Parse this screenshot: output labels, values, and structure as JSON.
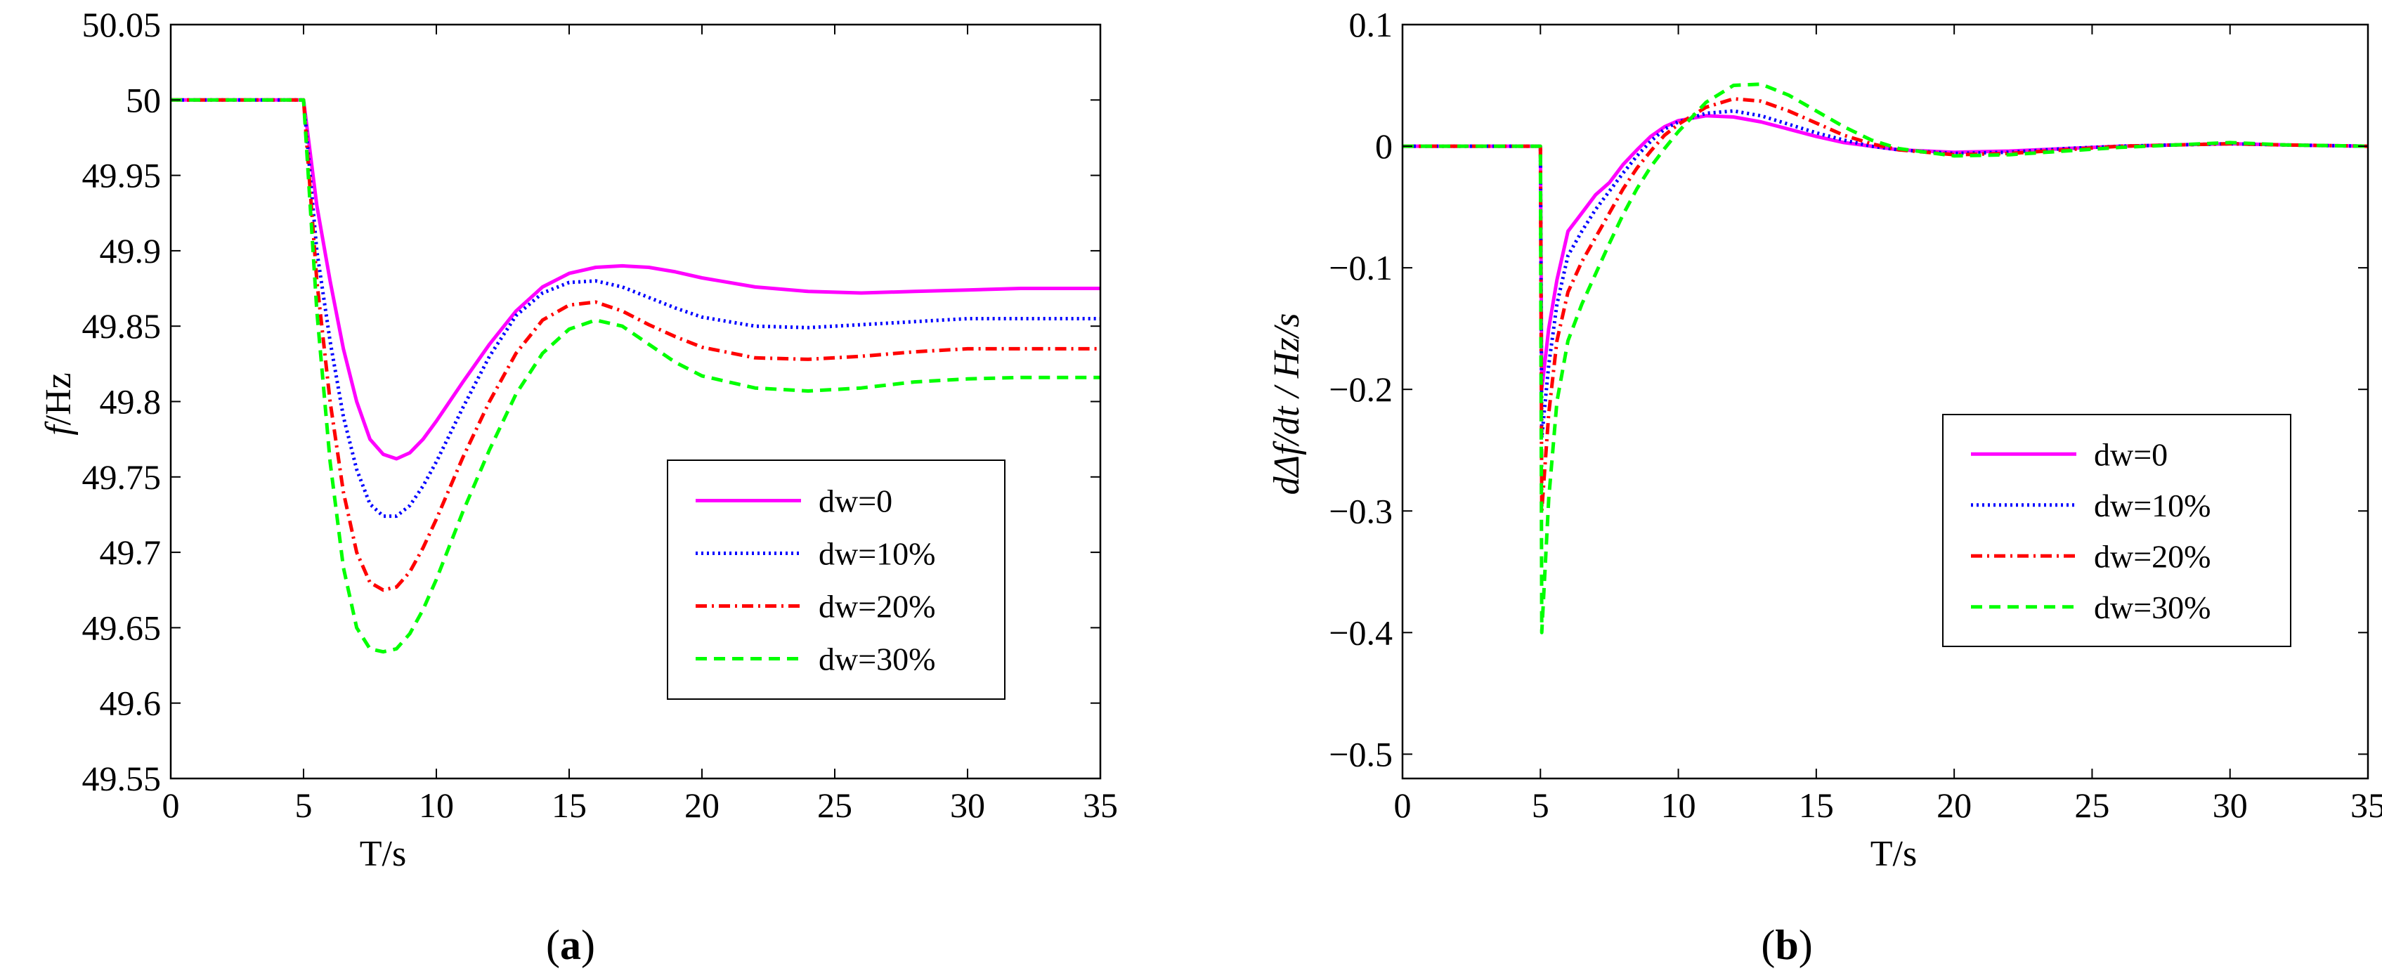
{
  "chart_data": [
    {
      "type": "line",
      "panel": "a",
      "caption": "(a)",
      "caption_letter": "a",
      "xlabel": "T/s",
      "ylabel": "f/Hz",
      "ylabel_italic": "f",
      "ylabel_rest": "/Hz",
      "xlim": [
        0,
        35
      ],
      "ylim": [
        49.55,
        50.05
      ],
      "xticks": [
        "0",
        "5",
        "10",
        "15",
        "20",
        "25",
        "30",
        "35"
      ],
      "yticks": [
        "49.55",
        "49.6",
        "49.65",
        "49.7",
        "49.75",
        "49.8",
        "49.85",
        "49.9",
        "49.95",
        "50",
        "50.05"
      ],
      "legend_position": "lower-right",
      "series": [
        {
          "name": "dw=0",
          "color": "#ff00ff",
          "style": "solid",
          "x": [
            0,
            4.9,
            5,
            5.5,
            6,
            6.5,
            7,
            7.5,
            8,
            8.5,
            9,
            9.5,
            10,
            11,
            12,
            13,
            14,
            15,
            16,
            17,
            18,
            19,
            20,
            22,
            24,
            26,
            28,
            30,
            32,
            35
          ],
          "y": [
            50,
            50,
            50,
            49.93,
            49.88,
            49.835,
            49.8,
            49.775,
            49.765,
            49.762,
            49.766,
            49.775,
            49.787,
            49.813,
            49.838,
            49.86,
            49.876,
            49.885,
            49.889,
            49.89,
            49.889,
            49.886,
            49.882,
            49.876,
            49.873,
            49.872,
            49.873,
            49.874,
            49.875,
            49.875
          ]
        },
        {
          "name": "dw=10%",
          "color": "#0000ff",
          "style": "dotted",
          "x": [
            0,
            4.9,
            5,
            5.5,
            6,
            6.5,
            7,
            7.5,
            8,
            8.5,
            9,
            9.5,
            10,
            11,
            12,
            13,
            14,
            15,
            16,
            17,
            18,
            19,
            20,
            22,
            24,
            26,
            28,
            30,
            32,
            35
          ],
          "y": [
            50,
            50,
            50,
            49.9,
            49.84,
            49.79,
            49.755,
            49.732,
            49.724,
            49.724,
            49.731,
            49.744,
            49.76,
            49.796,
            49.83,
            49.857,
            49.872,
            49.879,
            49.88,
            49.876,
            49.869,
            49.862,
            49.856,
            49.85,
            49.849,
            49.851,
            49.853,
            49.855,
            49.855,
            49.855
          ]
        },
        {
          "name": "dw=20%",
          "color": "#ff0000",
          "style": "dashdot",
          "x": [
            0,
            4.9,
            5,
            5.5,
            6,
            6.5,
            7,
            7.5,
            8,
            8.5,
            9,
            9.5,
            10,
            11,
            12,
            13,
            14,
            15,
            16,
            17,
            18,
            19,
            20,
            22,
            24,
            26,
            28,
            30,
            32,
            35
          ],
          "y": [
            50,
            50,
            50,
            49.88,
            49.8,
            49.74,
            49.7,
            49.68,
            49.675,
            49.677,
            49.687,
            49.703,
            49.722,
            49.763,
            49.8,
            49.832,
            49.854,
            49.864,
            49.866,
            49.86,
            49.851,
            49.843,
            49.836,
            49.829,
            49.828,
            49.83,
            49.833,
            49.835,
            49.835,
            49.835
          ]
        },
        {
          "name": "dw=30%",
          "color": "#00ff00",
          "style": "dashed",
          "x": [
            0,
            4.9,
            5,
            5.5,
            6,
            6.5,
            7,
            7.5,
            8,
            8.5,
            9,
            9.5,
            10,
            11,
            12,
            13,
            14,
            15,
            16,
            17,
            18,
            19,
            20,
            22,
            24,
            26,
            28,
            30,
            32,
            35
          ],
          "y": [
            50,
            50,
            50,
            49.86,
            49.76,
            49.69,
            49.65,
            49.636,
            49.634,
            49.636,
            49.646,
            49.662,
            49.682,
            49.727,
            49.768,
            49.805,
            49.832,
            49.848,
            49.854,
            49.85,
            49.838,
            49.826,
            49.817,
            49.809,
            49.807,
            49.809,
            49.813,
            49.815,
            49.816,
            49.816
          ]
        }
      ]
    },
    {
      "type": "line",
      "panel": "b",
      "caption": "(b)",
      "caption_letter": "b",
      "xlabel": "T/s",
      "ylabel": "dΔf/dt / Hz/s",
      "xlim": [
        0,
        35
      ],
      "ylim": [
        -0.52,
        0.1
      ],
      "xticks": [
        "0",
        "5",
        "10",
        "15",
        "20",
        "25",
        "30",
        "35"
      ],
      "yticks": [
        "-0.5",
        "-0.4",
        "-0.3",
        "-0.2",
        "-0.1",
        "0",
        "0.1"
      ],
      "legend_position": "center-right",
      "series": [
        {
          "name": "dw=0",
          "color": "#ff00ff",
          "style": "solid",
          "x": [
            0,
            4.95,
            5,
            5.05,
            5.3,
            5.6,
            6,
            6.5,
            7,
            7.5,
            8,
            8.5,
            9,
            9.5,
            10,
            11,
            12,
            13,
            14,
            15,
            16,
            17,
            18,
            20,
            22,
            24,
            26,
            28,
            30,
            32,
            35
          ],
          "y": [
            0,
            0,
            0,
            -0.2,
            -0.15,
            -0.11,
            -0.07,
            -0.055,
            -0.04,
            -0.03,
            -0.015,
            -0.003,
            0.008,
            0.016,
            0.021,
            0.025,
            0.024,
            0.02,
            0.014,
            0.008,
            0.003,
            0,
            -0.003,
            -0.005,
            -0.004,
            -0.002,
            0,
            0.001,
            0.002,
            0.001,
            0
          ]
        },
        {
          "name": "dw=10%",
          "color": "#0000ff",
          "style": "dotted",
          "x": [
            0,
            4.95,
            5,
            5.05,
            5.3,
            5.6,
            6,
            6.5,
            7,
            7.5,
            8,
            8.5,
            9,
            9.5,
            10,
            11,
            12,
            13,
            14,
            15,
            16,
            17,
            18,
            20,
            22,
            24,
            26,
            28,
            30,
            32,
            35
          ],
          "y": [
            0,
            0,
            0,
            -0.24,
            -0.18,
            -0.13,
            -0.09,
            -0.07,
            -0.052,
            -0.037,
            -0.022,
            -0.008,
            0.004,
            0.014,
            0.02,
            0.027,
            0.029,
            0.025,
            0.018,
            0.011,
            0.005,
            0,
            -0.003,
            -0.006,
            -0.005,
            -0.002,
            0,
            0.001,
            0.002,
            0.001,
            0
          ]
        },
        {
          "name": "dw=20%",
          "color": "#ff0000",
          "style": "dashdot",
          "x": [
            0,
            4.95,
            5,
            5.05,
            5.3,
            5.6,
            6,
            6.5,
            7,
            7.5,
            8,
            8.5,
            9,
            9.5,
            10,
            11,
            12,
            13,
            14,
            15,
            16,
            17,
            18,
            20,
            22,
            24,
            26,
            28,
            30,
            32,
            35
          ],
          "y": [
            0,
            0,
            0,
            -0.3,
            -0.22,
            -0.16,
            -0.12,
            -0.095,
            -0.075,
            -0.055,
            -0.035,
            -0.018,
            -0.004,
            0.009,
            0.018,
            0.032,
            0.039,
            0.037,
            0.029,
            0.019,
            0.009,
            0.002,
            -0.003,
            -0.007,
            -0.006,
            -0.003,
            0,
            0.001,
            0.002,
            0.001,
            0
          ]
        },
        {
          "name": "dw=30%",
          "color": "#00ff00",
          "style": "dashed",
          "x": [
            0,
            4.95,
            5,
            5.05,
            5.3,
            5.6,
            6,
            6.5,
            7,
            7.5,
            8,
            8.5,
            9,
            9.5,
            10,
            11,
            12,
            13,
            14,
            15,
            16,
            17,
            18,
            20,
            22,
            24,
            26,
            28,
            30,
            32,
            35
          ],
          "y": [
            0,
            0,
            0,
            -0.4,
            -0.29,
            -0.21,
            -0.16,
            -0.13,
            -0.105,
            -0.08,
            -0.056,
            -0.035,
            -0.017,
            -0.002,
            0.012,
            0.036,
            0.05,
            0.051,
            0.042,
            0.029,
            0.016,
            0.005,
            -0.002,
            -0.008,
            -0.007,
            -0.004,
            -0.001,
            0.001,
            0.003,
            0.001,
            0
          ]
        }
      ]
    }
  ]
}
